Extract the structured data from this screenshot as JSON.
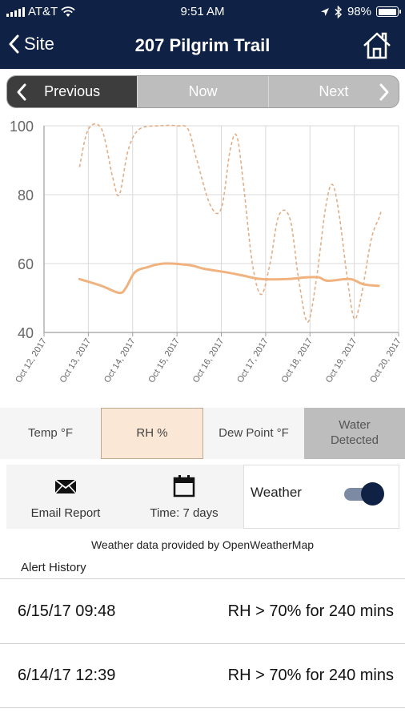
{
  "status_bar": {
    "carrier": "AT&T",
    "time": "9:51 AM",
    "battery": "98%",
    "battery_level": 0.98
  },
  "nav": {
    "back_label": "Site",
    "title": "207 Pilgrim Trail"
  },
  "segments": [
    "Previous",
    "Now",
    "Next"
  ],
  "chart_data": {
    "type": "line",
    "x": [
      "Oct 12, 2017",
      "Oct 13, 2017",
      "Oct 14, 2017",
      "Oct 15, 2017",
      "Oct 16, 2017",
      "Oct 17, 2017",
      "Oct 18, 2017",
      "Oct 19, 2017",
      "Oct 20, 2017"
    ],
    "ylim": [
      40,
      100
    ],
    "yticks": [
      40,
      60,
      80,
      100
    ],
    "grid": true,
    "series": [
      {
        "style": "dashed",
        "color": "#e2ae86",
        "points": [
          [
            12.8,
            88
          ],
          [
            13.0,
            99
          ],
          [
            13.3,
            99
          ],
          [
            13.55,
            85
          ],
          [
            13.7,
            80
          ],
          [
            13.9,
            93
          ],
          [
            14.15,
            99
          ],
          [
            14.6,
            100
          ],
          [
            15.0,
            100
          ],
          [
            15.25,
            99
          ],
          [
            15.45,
            90
          ],
          [
            15.75,
            77
          ],
          [
            16.0,
            76
          ],
          [
            16.2,
            93
          ],
          [
            16.35,
            97
          ],
          [
            16.5,
            83
          ],
          [
            16.7,
            60
          ],
          [
            16.9,
            51
          ],
          [
            17.1,
            60
          ],
          [
            17.3,
            74
          ],
          [
            17.55,
            73
          ],
          [
            17.75,
            55
          ],
          [
            17.95,
            43
          ],
          [
            18.15,
            56
          ],
          [
            18.35,
            76
          ],
          [
            18.5,
            83
          ],
          [
            18.65,
            75
          ],
          [
            18.85,
            55
          ],
          [
            19.0,
            44
          ],
          [
            19.15,
            50
          ],
          [
            19.35,
            65
          ],
          [
            19.45,
            70
          ],
          [
            19.55,
            73
          ],
          [
            19.6,
            75
          ]
        ]
      },
      {
        "style": "solid",
        "color": "#f0b27f",
        "points": [
          [
            12.8,
            55.5
          ],
          [
            13.3,
            53.5
          ],
          [
            13.7,
            51.5
          ],
          [
            13.85,
            53
          ],
          [
            14.05,
            57.5
          ],
          [
            14.35,
            59
          ],
          [
            14.7,
            60
          ],
          [
            15.3,
            59.5
          ],
          [
            15.6,
            58.5
          ],
          [
            16.1,
            57.5
          ],
          [
            16.5,
            56.5
          ],
          [
            16.9,
            55.5
          ],
          [
            17.5,
            55.5
          ],
          [
            17.9,
            56
          ],
          [
            18.2,
            56
          ],
          [
            18.4,
            55
          ],
          [
            18.9,
            55.5
          ],
          [
            19.2,
            54
          ],
          [
            19.55,
            53.5
          ]
        ]
      }
    ]
  },
  "tabs": [
    {
      "label": "Temp °F"
    },
    {
      "label": "RH %"
    },
    {
      "label": "Dew Point °F"
    },
    {
      "label_line1": "Water",
      "label_line2": "Detected"
    }
  ],
  "controls": {
    "email_label": "Email Report",
    "time_label": "Time: 7 days",
    "weather_label": "Weather"
  },
  "weather_credit": "Weather data provided by OpenWeatherMap",
  "alert_history": {
    "title": "Alert History",
    "rows": [
      {
        "date": "6/15/17 09:48",
        "message": "RH > 70% for 240 mins"
      },
      {
        "date": "6/14/17 12:39",
        "message": "RH > 70% for 240 mins"
      }
    ]
  }
}
